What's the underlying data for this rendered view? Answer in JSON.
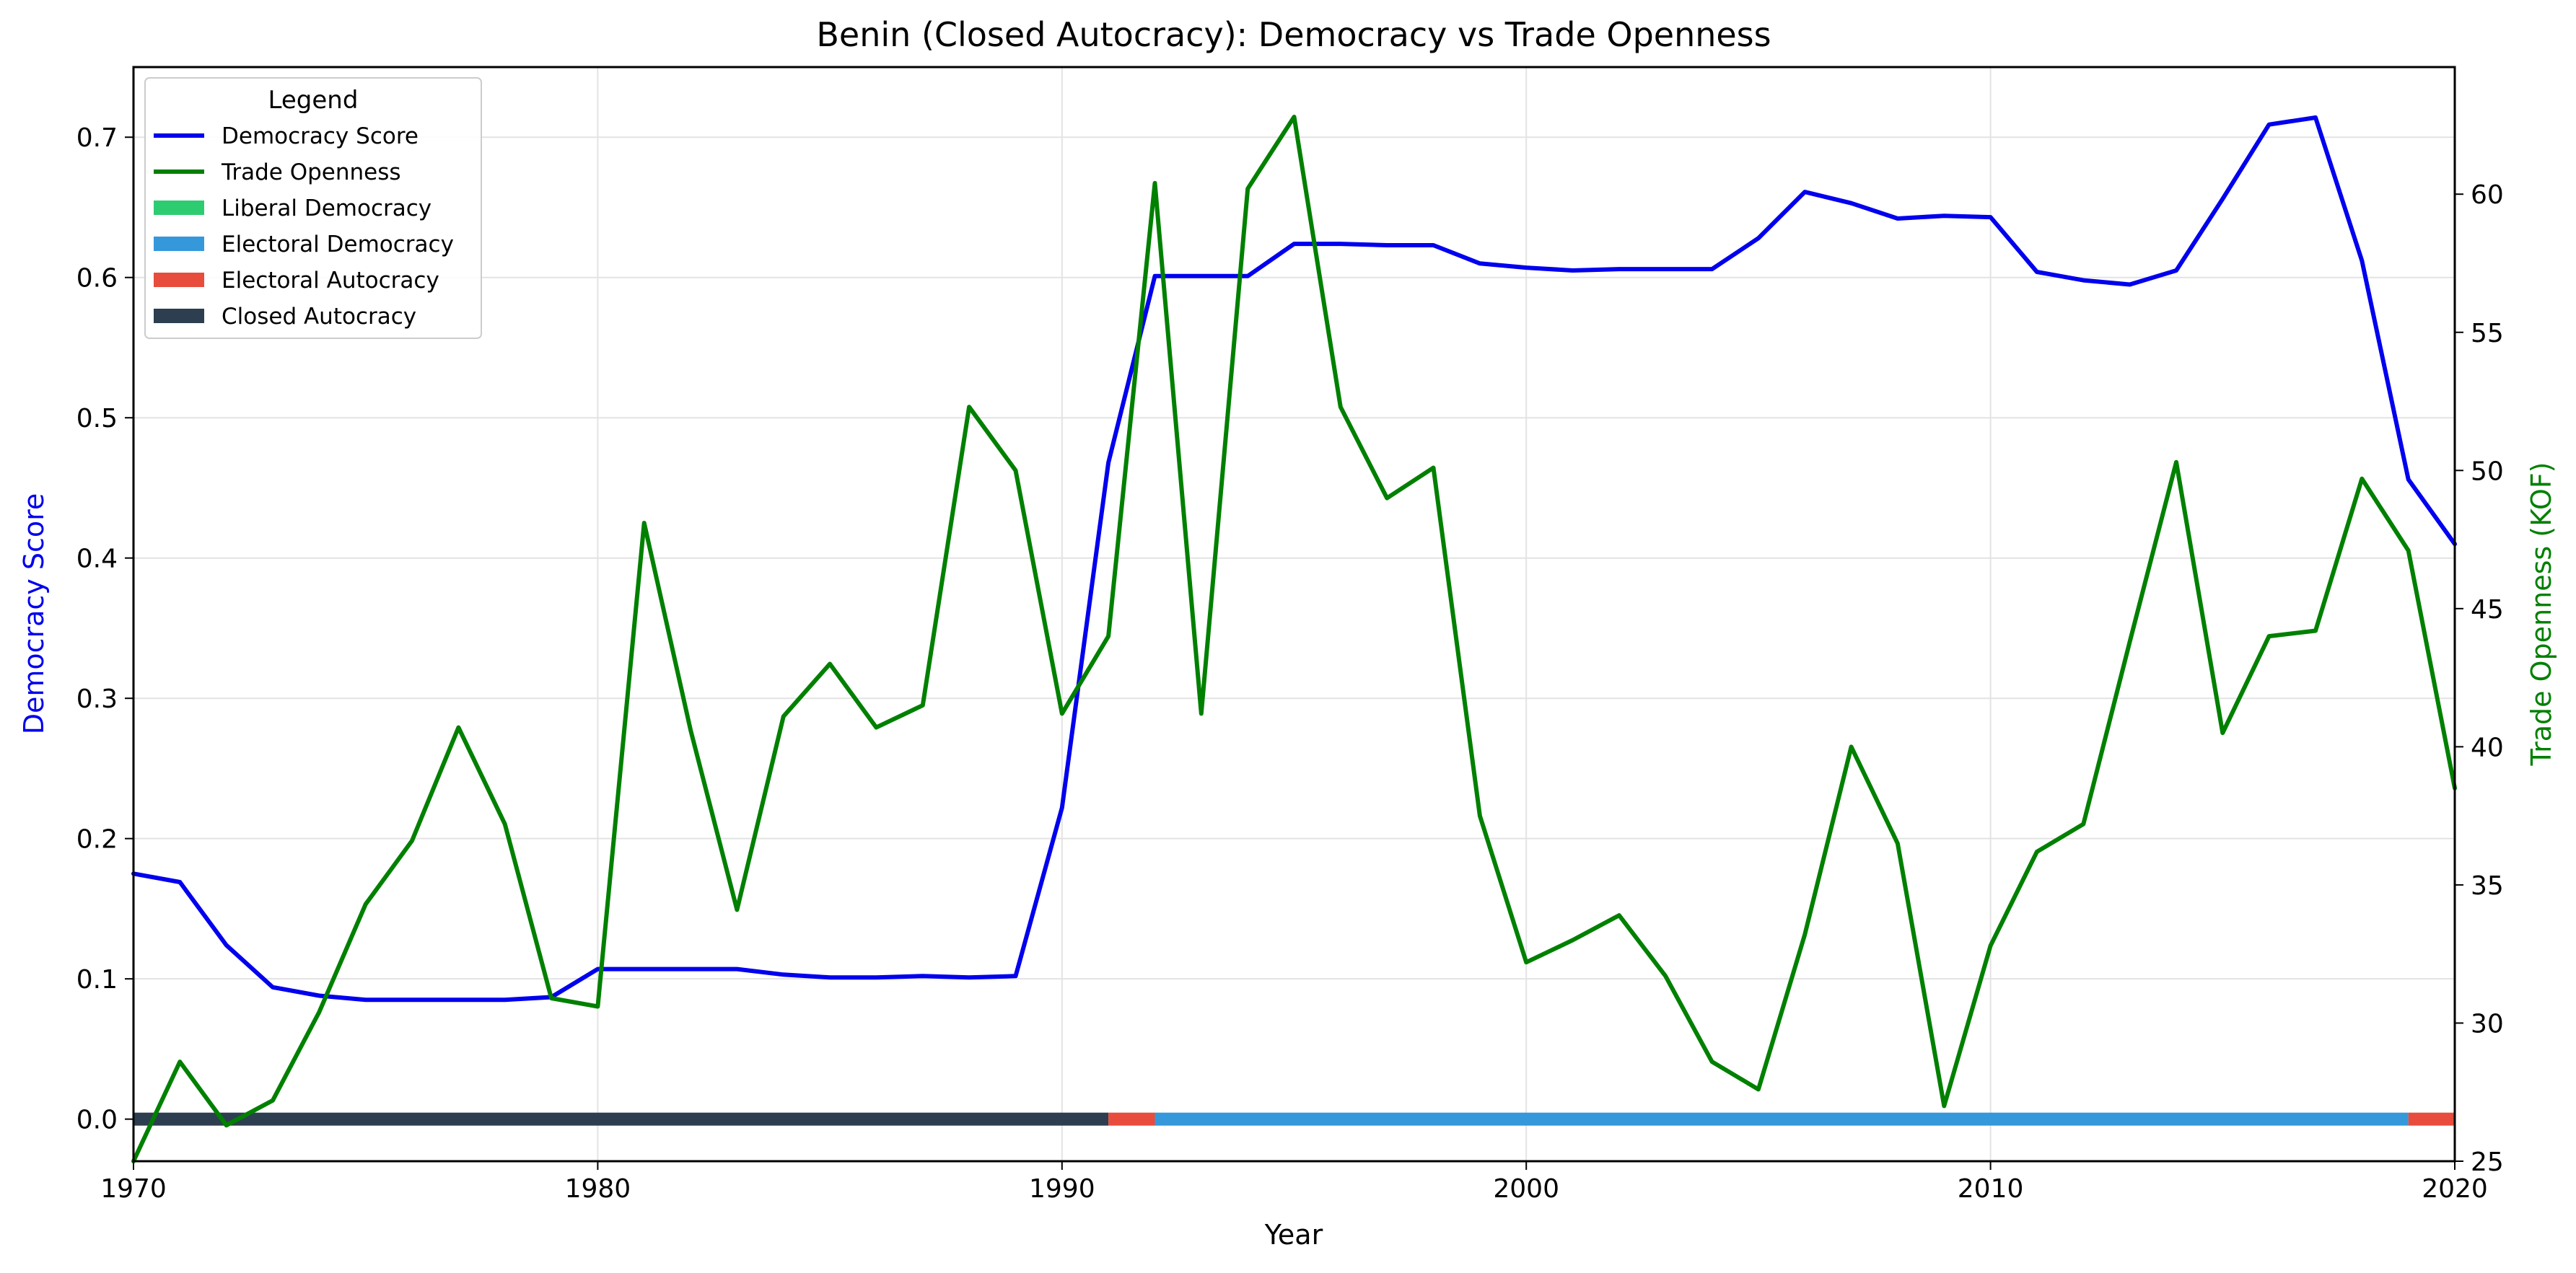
{
  "chart_data": {
    "type": "line",
    "title": "Benin (Closed Autocracy): Democracy vs Trade Openness",
    "xlabel": "Year",
    "ylabel_left": "Democracy Score",
    "ylabel_right": "Trade Openness (KOF)",
    "xlim": [
      1970,
      2020
    ],
    "ylim_left": [
      -0.03,
      0.75
    ],
    "ylim_right": [
      25,
      64.6
    ],
    "grid": true,
    "x_ticks": [
      "1970",
      "1980",
      "1990",
      "2000",
      "2010",
      "2020"
    ],
    "y_left_ticks": [
      "0.0",
      "0.1",
      "0.2",
      "0.3",
      "0.4",
      "0.5",
      "0.6",
      "0.7"
    ],
    "y_right_ticks": [
      "25",
      "30",
      "35",
      "40",
      "45",
      "50",
      "55",
      "60"
    ],
    "legend": {
      "title": "Legend",
      "placement": "top-left",
      "entries": [
        {
          "label": "Democracy Score",
          "kind": "line",
          "color": "#0000ee"
        },
        {
          "label": "Trade Openness",
          "kind": "line",
          "color": "#008000"
        },
        {
          "label": "Liberal Democracy",
          "kind": "patch",
          "color": "#2ecc71"
        },
        {
          "label": "Electoral Democracy",
          "kind": "patch",
          "color": "#3498db"
        },
        {
          "label": "Electoral Autocracy",
          "kind": "patch",
          "color": "#e74c3c"
        },
        {
          "label": "Closed Autocracy",
          "kind": "patch",
          "color": "#2c3e50"
        }
      ]
    },
    "x": [
      1970,
      1971,
      1972,
      1973,
      1974,
      1975,
      1976,
      1977,
      1978,
      1979,
      1980,
      1981,
      1982,
      1983,
      1984,
      1985,
      1986,
      1987,
      1988,
      1989,
      1990,
      1991,
      1992,
      1993,
      1994,
      1995,
      1996,
      1997,
      1998,
      1999,
      2000,
      2001,
      2002,
      2003,
      2004,
      2005,
      2006,
      2007,
      2008,
      2009,
      2010,
      2011,
      2012,
      2013,
      2014,
      2015,
      2016,
      2017,
      2018,
      2019,
      2020
    ],
    "series": [
      {
        "name": "Democracy Score",
        "axis": "left",
        "color": "#0000ee",
        "values": [
          0.175,
          0.169,
          0.124,
          0.094,
          0.088,
          0.085,
          0.085,
          0.085,
          0.085,
          0.087,
          0.107,
          0.107,
          0.107,
          0.107,
          0.103,
          0.101,
          0.101,
          0.102,
          0.101,
          0.102,
          0.222,
          0.468,
          0.601,
          0.601,
          0.601,
          0.624,
          0.624,
          0.623,
          0.623,
          0.61,
          0.607,
          0.605,
          0.606,
          0.606,
          0.606,
          0.628,
          0.661,
          0.653,
          0.642,
          0.644,
          0.643,
          0.604,
          0.598,
          0.595,
          0.605,
          0.656,
          0.709,
          0.714,
          0.612,
          0.456,
          0.41
        ]
      },
      {
        "name": "Trade Openness",
        "axis": "right",
        "color": "#008000",
        "values": [
          25.0,
          28.6,
          26.3,
          27.2,
          30.4,
          34.3,
          36.6,
          40.7,
          37.2,
          30.9,
          30.6,
          48.1,
          40.6,
          34.1,
          41.1,
          43.0,
          40.7,
          41.5,
          52.3,
          50.0,
          41.2,
          44.0,
          60.4,
          41.2,
          60.2,
          62.8,
          52.3,
          49.0,
          50.1,
          37.5,
          32.2,
          33.0,
          33.9,
          31.7,
          28.6,
          27.6,
          33.2,
          40.0,
          36.5,
          27.0,
          32.8,
          36.2,
          37.2,
          43.8,
          50.3,
          40.5,
          44.0,
          44.2,
          49.7,
          47.1,
          38.5
        ]
      }
    ],
    "regime_bands": [
      {
        "start": 1970,
        "end": 1991,
        "regime": "Closed Autocracy",
        "color": "#2c3e50"
      },
      {
        "start": 1991,
        "end": 1992,
        "regime": "Electoral Autocracy",
        "color": "#e74c3c"
      },
      {
        "start": 1992,
        "end": 2019,
        "regime": "Electoral Democracy",
        "color": "#3498db"
      },
      {
        "start": 2019,
        "end": 2020,
        "regime": "Electoral Autocracy",
        "color": "#e74c3c"
      }
    ]
  }
}
